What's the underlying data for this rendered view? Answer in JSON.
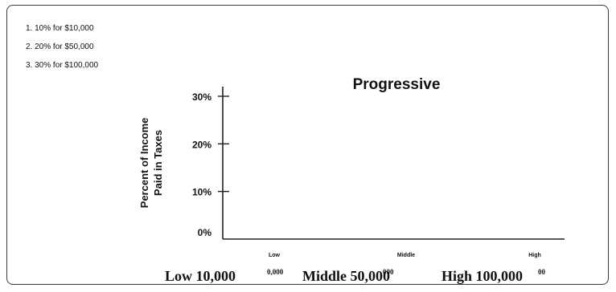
{
  "notes": [
    "1. 10% for $10,000",
    "2. 20% for $50,000",
    "3. 30% for $100,000"
  ],
  "chart_data": {
    "type": "line",
    "title": "Progressive",
    "ylabel": [
      "Percent of Income",
      "Paid in Taxes"
    ],
    "xlabel": "",
    "yticks": [
      "0%",
      "10%",
      "20%",
      "30%"
    ],
    "ylim": [
      0,
      30
    ],
    "categories": [
      "Low",
      "Middle",
      "High"
    ],
    "series": [],
    "grid": false
  },
  "bottom_labels": [
    {
      "main": "Low 10,000",
      "extra": "0,000"
    },
    {
      "main": "Middle 50,000",
      "extra": "000"
    },
    {
      "main": "High 100,000",
      "extra": "00"
    }
  ]
}
